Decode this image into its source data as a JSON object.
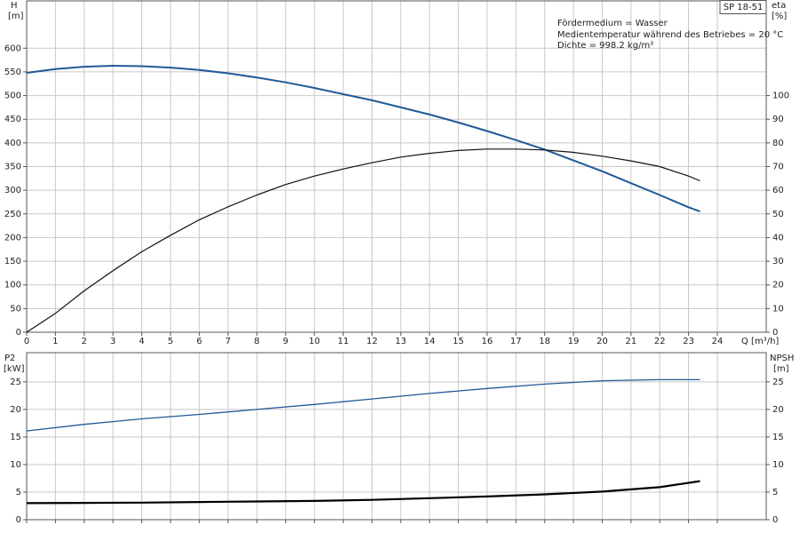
{
  "chart_data": [
    {
      "type": "line",
      "badge": "SP 18-51",
      "annotations": [
        "Fördermedium = Wasser",
        "Medientemperatur während des Betriebes = 20 °C",
        "Dichte = 998.2 kg/m³"
      ],
      "xlabel": "Q [m³/h]",
      "ylabel": "H",
      "yunit": "[m]",
      "y2label": "eta",
      "y2unit": "[%]",
      "x": [
        0,
        1,
        2,
        3,
        4,
        5,
        6,
        7,
        8,
        9,
        10,
        11,
        12,
        13,
        14,
        15,
        16,
        17,
        18,
        19,
        20,
        21,
        22,
        23,
        23.4
      ],
      "xlim": [
        0,
        25.7
      ],
      "xticks": [
        0,
        1,
        2,
        3,
        4,
        5,
        6,
        7,
        8,
        9,
        10,
        11,
        12,
        13,
        14,
        15,
        16,
        17,
        18,
        19,
        20,
        21,
        22,
        23,
        24
      ],
      "ylim": [
        0,
        700
      ],
      "yticks": [
        0,
        50,
        100,
        150,
        200,
        250,
        300,
        350,
        400,
        450,
        500,
        550,
        600
      ],
      "y2lim": [
        0,
        140
      ],
      "y2ticks": [
        0,
        10,
        20,
        30,
        40,
        50,
        60,
        70,
        80,
        90,
        100
      ],
      "grid": true,
      "series": [
        {
          "color": "#1f5a96",
          "linewidth": 2,
          "axis": "y",
          "values": [
            548,
            556,
            561,
            563,
            562,
            559,
            554,
            547,
            538,
            528,
            516,
            503,
            490,
            475,
            460,
            443,
            425,
            406,
            386,
            363,
            340,
            315,
            290,
            264,
            255
          ]
        },
        {
          "color": "#111111",
          "linewidth": 1.2,
          "axis": "y2",
          "values": [
            0,
            8,
            17.5,
            26,
            34,
            41,
            47.5,
            53,
            58,
            62.4,
            66,
            69,
            71.6,
            74,
            75.6,
            76.8,
            77.4,
            77.4,
            77,
            76,
            74.4,
            72.4,
            70,
            66,
            64
          ]
        }
      ]
    },
    {
      "type": "line",
      "ylabel": "P2",
      "yunit": "[kW]",
      "y2label": "NPSH",
      "y2unit": "[m]",
      "x": [
        0,
        2,
        4,
        6,
        8,
        10,
        12,
        14,
        16,
        18,
        20,
        22,
        23.4
      ],
      "xlim": [
        0,
        25.7
      ],
      "ylim": [
        0,
        30.3
      ],
      "yticks": [
        0,
        5,
        10,
        15,
        20,
        25
      ],
      "y2lim": [
        0,
        30.3
      ],
      "y2ticks": [
        0,
        5,
        10,
        15,
        20,
        25
      ],
      "grid": true,
      "series": [
        {
          "color": "#1f5a96",
          "linewidth": 1.3,
          "axis": "y",
          "values": [
            16.1,
            17.3,
            18.3,
            19.1,
            20.0,
            20.9,
            21.9,
            22.9,
            23.8,
            24.6,
            25.2,
            25.4,
            25.4
          ]
        },
        {
          "color": "#000000",
          "linewidth": 2.2,
          "axis": "y2",
          "values": [
            3.0,
            3.05,
            3.1,
            3.2,
            3.3,
            3.4,
            3.6,
            3.9,
            4.2,
            4.6,
            5.1,
            5.9,
            7.0
          ]
        }
      ]
    }
  ]
}
